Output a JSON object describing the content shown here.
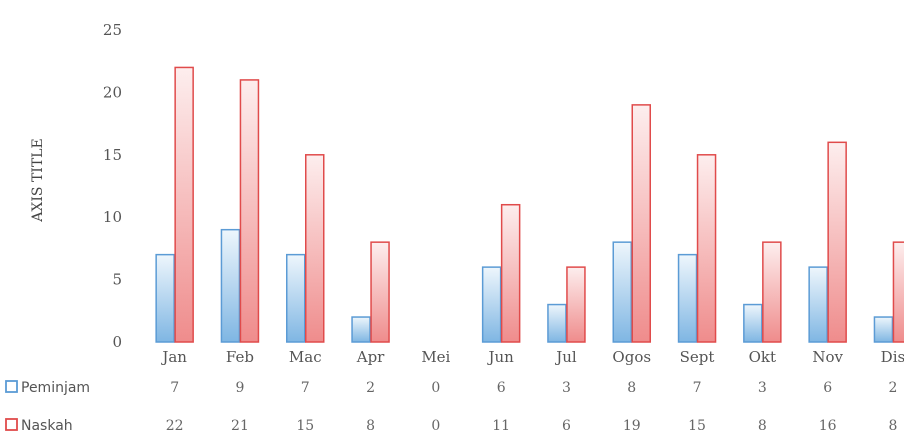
{
  "chart_data": {
    "type": "bar",
    "ylabel": "AXIS TITLE",
    "ylim": [
      0,
      25
    ],
    "yticks": [
      0,
      5,
      10,
      15,
      20,
      25
    ],
    "grid": false,
    "legend_placement": "bottom-left (data table)",
    "categories": [
      "Jan",
      "Feb",
      "Mac",
      "Apr",
      "Mei",
      "Jun",
      "Jul",
      "Ogos",
      "Sept",
      "Okt",
      "Nov",
      "Dis"
    ],
    "series": [
      {
        "name": "Peminjam",
        "values": [
          7,
          9,
          7,
          2,
          0,
          6,
          3,
          8,
          7,
          3,
          6,
          2
        ],
        "color": "#5b9bd5"
      },
      {
        "name": "Naskah",
        "values": [
          22,
          21,
          15,
          8,
          0,
          11,
          6,
          19,
          15,
          8,
          16,
          8
        ],
        "color": "#e04b4b"
      }
    ]
  }
}
